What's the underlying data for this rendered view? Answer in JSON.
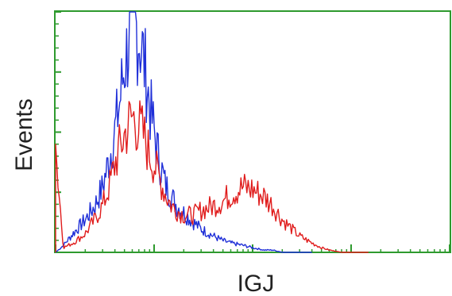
{
  "chart_data": {
    "type": "line",
    "xlabel": "IGJ",
    "ylabel": "Events",
    "x_scale": "log",
    "xlim": [
      1,
      10000
    ],
    "ylim": [
      0,
      100
    ],
    "grid": false,
    "legend": "none",
    "colors": {
      "axes": "#2e9a2e",
      "blue": "#1f2fd8",
      "red": "#e01c1c"
    },
    "series": [
      {
        "color": "#1f2fd8",
        "x": [
          1,
          1.2,
          1.5,
          2,
          2.5,
          3,
          3.5,
          4,
          4.5,
          5,
          5.5,
          6,
          6.5,
          7,
          7.5,
          8,
          8.5,
          9,
          10,
          11,
          12,
          13,
          15,
          17,
          20,
          25,
          30,
          40,
          50,
          60,
          80,
          100,
          130,
          160,
          200,
          250,
          300,
          400
        ],
        "y": [
          0,
          3,
          8,
          14,
          20,
          28,
          40,
          52,
          65,
          80,
          90,
          100,
          97,
          93,
          88,
          80,
          72,
          63,
          52,
          42,
          35,
          29,
          24,
          20,
          17,
          13,
          10,
          7,
          5,
          4,
          3,
          2,
          1,
          1,
          0,
          0,
          0,
          0
        ]
      },
      {
        "color": "#e01c1c",
        "x": [
          1,
          1.2,
          1.5,
          2,
          2.5,
          3,
          3.5,
          4,
          4.5,
          5,
          5.5,
          6,
          6.5,
          7,
          7.5,
          8,
          8.5,
          9,
          10,
          11,
          12,
          13,
          15,
          17,
          20,
          25,
          30,
          40,
          50,
          60,
          80,
          100,
          130,
          160,
          200,
          250,
          300,
          400,
          500,
          600,
          800,
          1000,
          1200,
          1500
        ],
        "y": [
          45,
          2,
          4,
          8,
          14,
          20,
          28,
          38,
          45,
          50,
          55,
          58,
          56,
          54,
          52,
          49,
          45,
          42,
          38,
          33,
          29,
          25,
          20,
          18,
          16,
          16,
          18,
          20,
          22,
          25,
          28,
          27,
          24,
          20,
          14,
          10,
          7,
          4,
          2,
          1,
          0,
          0,
          0,
          0
        ]
      }
    ]
  }
}
